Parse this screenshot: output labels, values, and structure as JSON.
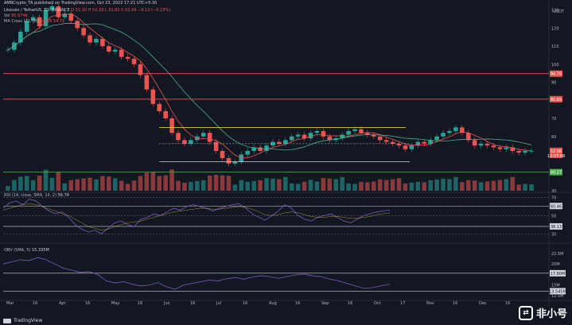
{
  "header": {
    "published_line": "AMBCrypto_TA published on TradingView.com, Oct 23, 2022 17:21 UTC+5:30",
    "symbol_line": "Litecoin / TetherUS, 1D, BINANCE",
    "ohlc": "O 52.10  H 52.33  L 51.82  C 52.06  −0.12 (−0.23%)",
    "vol_label": "Vol",
    "vol_value": "95.674K",
    "ma_label": "MA Cross (21, 55)",
    "ma_values": "52.38  54.71",
    "currency": "USDT"
  },
  "panels": {
    "rsi_label": "RSI (14, close, SMA, 14, 2)",
    "rsi_values": "56.74",
    "obv_label": "OBV (SMA, 5)",
    "obv_values": "15.335M"
  },
  "footer": {
    "brand": "TradingView"
  },
  "watermark": {
    "text": "非小号"
  },
  "colors": {
    "bull": "#26a69a",
    "bear": "#ef5350",
    "ma_fast": "#ef5350",
    "ma_slow": "#4caf8f",
    "rsi": "#7e57c2",
    "obv": "#7e57c2",
    "resistance": "#ef5350",
    "range": "#ffeb3b",
    "support": "#4caf50"
  },
  "chart_data": [
    {
      "type": "line",
      "title": "Litecoin / TetherUS, 1D, BINANCE",
      "x": [
        "Mar",
        "16",
        "Apr",
        "16",
        "May",
        "16",
        "Jun",
        "16",
        "Jul",
        "16",
        "Aug",
        "16",
        "Sep",
        "16",
        "Oct",
        "17",
        "Nov",
        "16",
        "Dec",
        "16"
      ],
      "y_ticks": [
        30,
        40,
        50,
        60,
        70,
        80,
        90,
        100,
        110,
        120,
        130
      ],
      "ylim": [
        30,
        132
      ],
      "price_path": [
        108,
        112,
        118,
        124,
        126,
        121,
        130,
        132,
        126,
        128,
        124,
        120,
        116,
        112,
        114,
        110,
        107,
        108,
        104,
        103,
        100,
        94,
        86,
        78,
        74,
        70,
        62,
        58,
        56,
        58,
        60,
        62,
        57,
        52,
        48,
        45,
        46,
        50,
        52,
        54,
        52,
        55,
        57,
        56,
        58,
        60,
        61,
        59,
        62,
        63,
        60,
        58,
        59,
        61,
        63,
        64,
        62,
        61,
        60,
        58,
        57,
        56,
        55,
        53,
        55,
        57,
        56,
        58,
        60,
        62,
        63,
        65,
        62,
        58,
        55,
        56,
        55,
        54,
        53,
        54,
        52,
        51,
        52,
        52
      ],
      "key_levels": [
        {
          "value": 94.76,
          "label": "94.76",
          "role": "resistance"
        },
        {
          "value": 80.65,
          "label": "80.65",
          "role": "resistance"
        },
        {
          "value": 52.06,
          "label": "52.06",
          "role": "last"
        },
        {
          "value": 40.27,
          "label": "40.27",
          "role": "support"
        }
      ],
      "range_high": 65,
      "range_low": 46,
      "mid_line": 56,
      "last_price_tag": "52.06",
      "last_price_sub": "12:07:08"
    },
    {
      "type": "line",
      "title": "RSI (14, close, SMA, 14, 2)",
      "y_ticks": [
        30,
        40,
        50,
        60,
        70
      ],
      "ylim": [
        25,
        72
      ],
      "levels": [
        {
          "value": 60.46,
          "label": "60.46"
        },
        {
          "value": 38.13,
          "label": "38.13"
        }
      ],
      "rsi_path": [
        58,
        64,
        66,
        62,
        68,
        66,
        60,
        55,
        52,
        54,
        48,
        40,
        35,
        32,
        34,
        30,
        36,
        42,
        44,
        40,
        38,
        46,
        48,
        52,
        50,
        54,
        58,
        56,
        60,
        62,
        60,
        58,
        55,
        58,
        60,
        62,
        63,
        58,
        52,
        48,
        45,
        50,
        55,
        62,
        58,
        50,
        46,
        44,
        48,
        50,
        52,
        48,
        44,
        42,
        46,
        50,
        52,
        54,
        55,
        56
      ],
      "rsi_ma_path": [
        56,
        58,
        60,
        62,
        63,
        62,
        60,
        57,
        55,
        52,
        50,
        46,
        42,
        38,
        36,
        34,
        35,
        38,
        40,
        42,
        43,
        44,
        46,
        48,
        50,
        52,
        54,
        55,
        56,
        57,
        58,
        58,
        57,
        57,
        58,
        59,
        60,
        59,
        57,
        54,
        51,
        50,
        51,
        53,
        54,
        53,
        51,
        49,
        48,
        48,
        49,
        49,
        48,
        47,
        47,
        48,
        49,
        51,
        52,
        53
      ]
    },
    {
      "type": "line",
      "title": "OBV (SMA, 5)",
      "y_ticks": [
        "12.5M",
        "15M",
        "20M",
        "22.5M"
      ],
      "ylim": [
        12.5,
        23.8
      ],
      "levels": [
        {
          "value": 17.8,
          "label": "17.80M"
        },
        {
          "value": 13.545,
          "label": "13.545M"
        }
      ],
      "obv_path": [
        20,
        20.5,
        21,
        20.8,
        21.5,
        21,
        20,
        19,
        18.5,
        18,
        18.2,
        17.5,
        16,
        15.5,
        15.8,
        15.2,
        14.8,
        15,
        15.6,
        14.6,
        14,
        15,
        15.4,
        15.8,
        16.2,
        16,
        16.5,
        16.8,
        16.4,
        16.9,
        17.2,
        17,
        16.6,
        17,
        17.4,
        17.6,
        17.2,
        17,
        16.4,
        16,
        15.4,
        14.8,
        14.2,
        14.4,
        14.8,
        15.2
      ]
    }
  ]
}
